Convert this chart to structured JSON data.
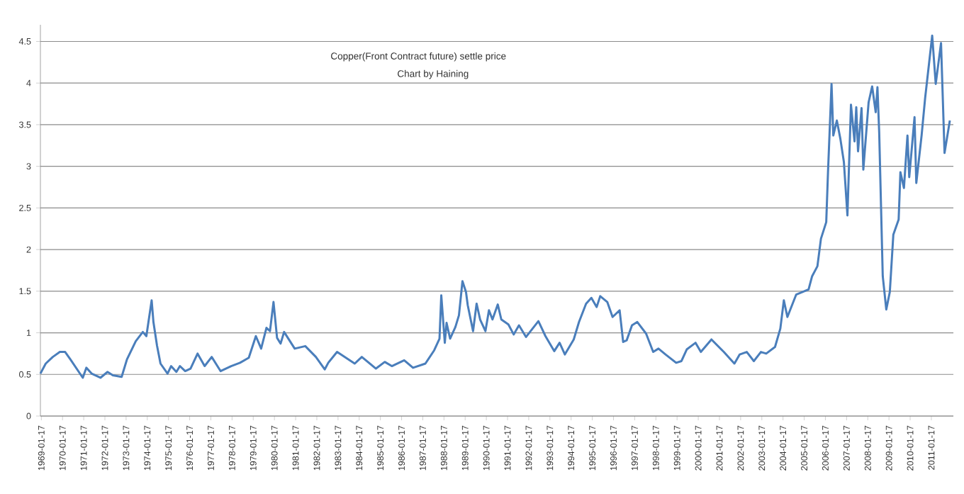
{
  "chart_data": {
    "type": "line",
    "title": "Copper(Front Contract future) settle price",
    "subtitle": "Chart  by Haining",
    "x": [
      "1969-01",
      "1969-04",
      "1969-08",
      "1969-12",
      "1970-03",
      "1970-06",
      "1971-01",
      "1971-03",
      "1971-06",
      "1971-11",
      "1972-03",
      "1972-06",
      "1972-11",
      "1973-02",
      "1973-07",
      "1973-11",
      "1974-01",
      "1974-04",
      "1974-05",
      "1974-07",
      "1974-09",
      "1975-01",
      "1975-03",
      "1975-06",
      "1975-08",
      "1975-11",
      "1976-02",
      "1976-06",
      "1976-10",
      "1977-02",
      "1977-07",
      "1978-01",
      "1978-06",
      "1978-11",
      "1979-03",
      "1979-06",
      "1979-09",
      "1979-11",
      "1980-01",
      "1980-03",
      "1980-05",
      "1980-07",
      "1980-10",
      "1981-01",
      "1981-07",
      "1982-01",
      "1982-06",
      "1982-08",
      "1983-01",
      "1983-11",
      "1984-03",
      "1984-11",
      "1985-04",
      "1985-08",
      "1986-03",
      "1986-08",
      "1987-03",
      "1987-08",
      "1987-11",
      "1987-12",
      "1988-02",
      "1988-03",
      "1988-05",
      "1988-08",
      "1988-10",
      "1988-12",
      "1989-02",
      "1989-03",
      "1989-06",
      "1989-08",
      "1989-10",
      "1990-01",
      "1990-03",
      "1990-05",
      "1990-08",
      "1990-10",
      "1991-02",
      "1991-05",
      "1991-08",
      "1991-12",
      "1992-07",
      "1992-11",
      "1993-04",
      "1993-07",
      "1993-10",
      "1994-03",
      "1994-06",
      "1994-10",
      "1995-01",
      "1995-04",
      "1995-06",
      "1995-10",
      "1996-01",
      "1996-05",
      "1996-07",
      "1996-09",
      "1996-12",
      "1997-03",
      "1997-08",
      "1997-12",
      "1998-03",
      "1998-07",
      "1999-01",
      "1999-04",
      "1999-07",
      "1999-12",
      "2000-03",
      "2000-09",
      "2001-04",
      "2001-10",
      "2002-01",
      "2002-05",
      "2002-09",
      "2003-01",
      "2003-04",
      "2003-09",
      "2003-12",
      "2004-02",
      "2004-04",
      "2004-09",
      "2005-04",
      "2005-06",
      "2005-09",
      "2005-11",
      "2006-02",
      "2006-03",
      "2006-05",
      "2006-06",
      "2006-08",
      "2006-10",
      "2006-12",
      "2007-02",
      "2007-04",
      "2007-06",
      "2007-07",
      "2007-08",
      "2007-10",
      "2007-11",
      "2008-02",
      "2008-04",
      "2008-06",
      "2008-07",
      "2008-08",
      "2008-10",
      "2008-12",
      "2009-02",
      "2009-04",
      "2009-07",
      "2009-08",
      "2009-10",
      "2009-12",
      "2010-01",
      "2010-04",
      "2010-05",
      "2010-08",
      "2010-10",
      "2011-02",
      "2011-04",
      "2011-07",
      "2011-09",
      "2011-12"
    ],
    "values": [
      0.51,
      0.63,
      0.71,
      0.77,
      0.77,
      0.68,
      0.46,
      0.58,
      0.51,
      0.46,
      0.53,
      0.49,
      0.47,
      0.68,
      0.9,
      1.01,
      0.96,
      1.39,
      1.13,
      0.85,
      0.63,
      0.51,
      0.6,
      0.53,
      0.6,
      0.54,
      0.57,
      0.75,
      0.6,
      0.71,
      0.54,
      0.6,
      0.64,
      0.7,
      0.96,
      0.81,
      1.06,
      1.02,
      1.37,
      0.94,
      0.87,
      1.01,
      0.91,
      0.81,
      0.84,
      0.71,
      0.56,
      0.64,
      0.77,
      0.63,
      0.71,
      0.57,
      0.65,
      0.6,
      0.67,
      0.58,
      0.63,
      0.79,
      0.93,
      1.45,
      0.88,
      1.12,
      0.93,
      1.07,
      1.21,
      1.62,
      1.49,
      1.33,
      1.02,
      1.35,
      1.16,
      1.02,
      1.27,
      1.16,
      1.34,
      1.16,
      1.1,
      0.98,
      1.09,
      0.95,
      1.14,
      0.96,
      0.78,
      0.88,
      0.74,
      0.92,
      1.13,
      1.35,
      1.42,
      1.31,
      1.44,
      1.37,
      1.19,
      1.27,
      0.89,
      0.91,
      1.09,
      1.13,
      0.99,
      0.77,
      0.81,
      0.74,
      0.64,
      0.66,
      0.8,
      0.88,
      0.77,
      0.92,
      0.77,
      0.63,
      0.74,
      0.77,
      0.66,
      0.77,
      0.75,
      0.83,
      1.05,
      1.39,
      1.19,
      1.46,
      1.52,
      1.68,
      1.8,
      2.13,
      2.33,
      2.93,
      3.99,
      3.37,
      3.55,
      3.33,
      3.05,
      2.41,
      3.74,
      3.3,
      3.71,
      3.18,
      3.7,
      2.96,
      3.77,
      3.96,
      3.65,
      3.95,
      3.4,
      1.68,
      1.28,
      1.49,
      2.18,
      2.36,
      2.93,
      2.74,
      3.37,
      2.87,
      3.59,
      2.8,
      3.37,
      3.82,
      4.57,
      3.99,
      4.48,
      3.16,
      3.55
    ],
    "color": "#4a7ebb",
    "line_style": "solid",
    "marker": "none",
    "grid": "y",
    "xlim": [
      "1969-01-01",
      "2012-02-01"
    ],
    "xticks": [
      "1969-01-17",
      "1970-01-17",
      "1971-01-17",
      "1972-01-17",
      "1973-01-17",
      "1974-01-17",
      "1975-01-17",
      "1976-01-17",
      "1977-01-17",
      "1978-01-17",
      "1979-01-17",
      "1980-01-17",
      "1981-01-17",
      "1982-01-17",
      "1983-01-17",
      "1984-01-17",
      "1985-01-17",
      "1986-01-17",
      "1987-01-17",
      "1988-01-17",
      "1989-01-17",
      "1990-01-17",
      "1991-01-17",
      "1992-01-17",
      "1993-01-17",
      "1994-01-17",
      "1995-01-17",
      "1996-01-17",
      "1997-01-17",
      "1998-01-17",
      "1999-01-17",
      "2000-01-17",
      "2001-01-17",
      "2002-01-17",
      "2003-01-17",
      "2004-01-17",
      "2005-01-17",
      "2006-01-17",
      "2007-01-17",
      "2008-01-17",
      "2009-01-17",
      "2010-01-17",
      "2011-01-17"
    ],
    "ylim": [
      0,
      4.7
    ],
    "yticks": [
      0,
      0.5,
      1,
      1.5,
      2,
      2.5,
      3,
      3.5,
      4,
      4.5
    ]
  }
}
